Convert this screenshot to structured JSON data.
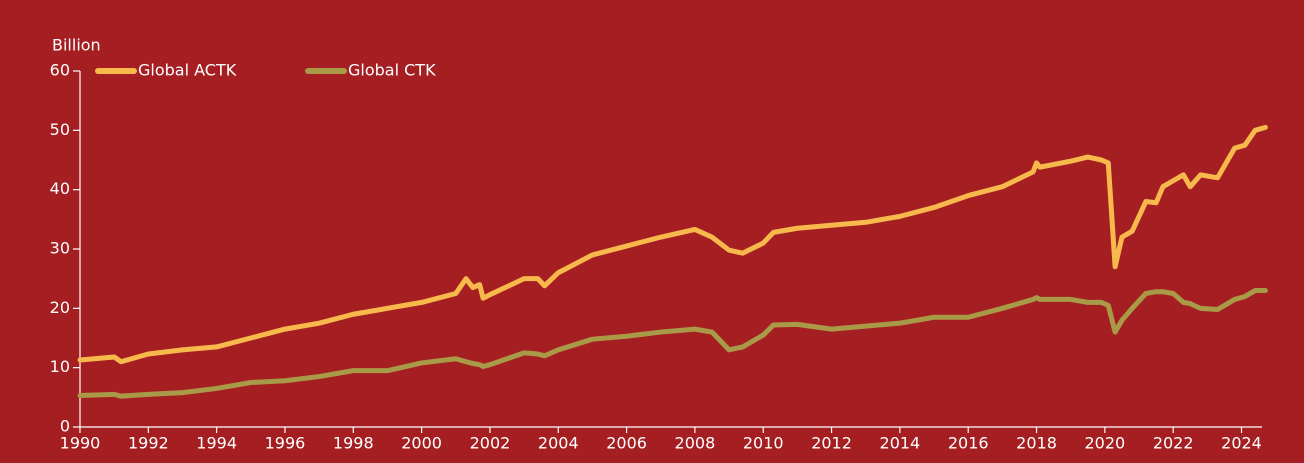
{
  "chart_data": {
    "type": "line",
    "y_label": "Billion",
    "x": [
      1990,
      1991,
      1991.2,
      1992,
      1993,
      1994,
      1995,
      1996,
      1997,
      1998,
      1999,
      2000,
      2001,
      2001.3,
      2001.5,
      2001.7,
      2001.8,
      2002,
      2003,
      2003.4,
      2003.6,
      2004,
      2005,
      2006,
      2007,
      2008,
      2008.5,
      2009,
      2009.4,
      2010,
      2010.3,
      2011,
      2012,
      2013,
      2014,
      2015,
      2016,
      2017,
      2017.9,
      2018,
      2018.1,
      2019,
      2019.5,
      2019.9,
      2020.1,
      2020.3,
      2020.5,
      2020.8,
      2021.2,
      2021.5,
      2021.7,
      2022,
      2022.3,
      2022.5,
      2022.8,
      2023.3,
      2023.8,
      2024.1,
      2024.4,
      2024.7
    ],
    "series": [
      {
        "name": "Global ACTK",
        "color": "#f7b94c",
        "values": [
          11.3,
          11.8,
          11,
          12.3,
          13,
          13.5,
          15,
          16.5,
          17.5,
          19,
          20,
          21,
          22.5,
          25,
          23.5,
          24,
          21.7,
          22.3,
          25,
          25,
          23.8,
          26,
          29,
          30.5,
          32,
          33.3,
          32,
          29.8,
          29.3,
          31,
          32.8,
          33.5,
          34,
          34.5,
          35.5,
          37,
          39,
          40.5,
          43,
          44.5,
          43.8,
          44.8,
          45.5,
          45,
          44.5,
          27,
          32,
          33,
          38,
          37.8,
          40.5,
          41.5,
          42.5,
          40.5,
          42.5,
          42,
          47,
          47.5,
          50,
          50.5
        ]
      },
      {
        "name": "Global CTK",
        "color": "#a99a48",
        "values": [
          5.3,
          5.5,
          5.2,
          5.5,
          5.8,
          6.5,
          7.5,
          7.8,
          8.5,
          9.5,
          9.5,
          10.8,
          11.5,
          11,
          10.7,
          10.5,
          10.2,
          10.5,
          12.5,
          12.3,
          12,
          13,
          14.8,
          15.3,
          16,
          16.5,
          16,
          13,
          13.5,
          15.5,
          17.2,
          17.3,
          16.5,
          17,
          17.5,
          18.5,
          18.5,
          20,
          21.5,
          21.8,
          21.5,
          21.5,
          21,
          21,
          20.5,
          16,
          18,
          20,
          22.5,
          22.8,
          22.8,
          22.5,
          21,
          20.8,
          20,
          19.8,
          21.5,
          22,
          23,
          23
        ]
      }
    ],
    "xlim": [
      1990,
      2024.6
    ],
    "xticks": [
      1990,
      1992,
      1994,
      1996,
      1998,
      2000,
      2002,
      2004,
      2006,
      2008,
      2010,
      2012,
      2014,
      2016,
      2018,
      2020,
      2022,
      2024
    ],
    "ylim": [
      0,
      60
    ],
    "yticks": [
      0,
      10,
      20,
      30,
      40,
      50,
      60
    ],
    "legend": "top-left"
  }
}
